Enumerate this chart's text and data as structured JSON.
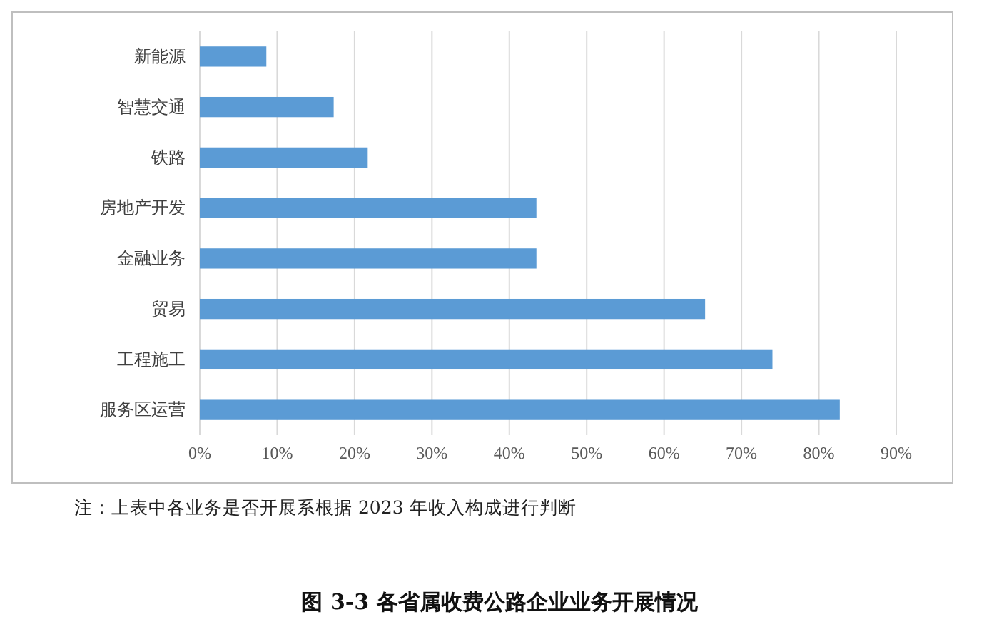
{
  "chart_data": {
    "type": "bar",
    "orientation": "horizontal",
    "title": "图 3-3    各省属收费公路企业业务开展情况",
    "categories": [
      "新能源",
      "智慧交通",
      "铁路",
      "房地产开发",
      "金融业务",
      "贸易",
      "工程施工",
      "服务区运营"
    ],
    "values": [
      8.6,
      17.3,
      21.7,
      43.5,
      43.5,
      65.3,
      74.0,
      82.7
    ],
    "color": "#5b9bd5",
    "xlim": [
      0,
      90
    ],
    "xticks": [
      {
        "value": 0,
        "label": "0%"
      },
      {
        "value": 10,
        "label": "10%"
      },
      {
        "value": 20,
        "label": "20%"
      },
      {
        "value": 30,
        "label": "30%"
      },
      {
        "value": 40,
        "label": "40%"
      },
      {
        "value": 50,
        "label": "50%"
      },
      {
        "value": 60,
        "label": "60%"
      },
      {
        "value": 70,
        "label": "70%"
      },
      {
        "value": 80,
        "label": "80%"
      },
      {
        "value": 90,
        "label": "90%"
      }
    ],
    "grid": "x",
    "annotations": [
      "注：上表中各业务是否开展系根据 2023 年收入构成进行判断"
    ]
  }
}
